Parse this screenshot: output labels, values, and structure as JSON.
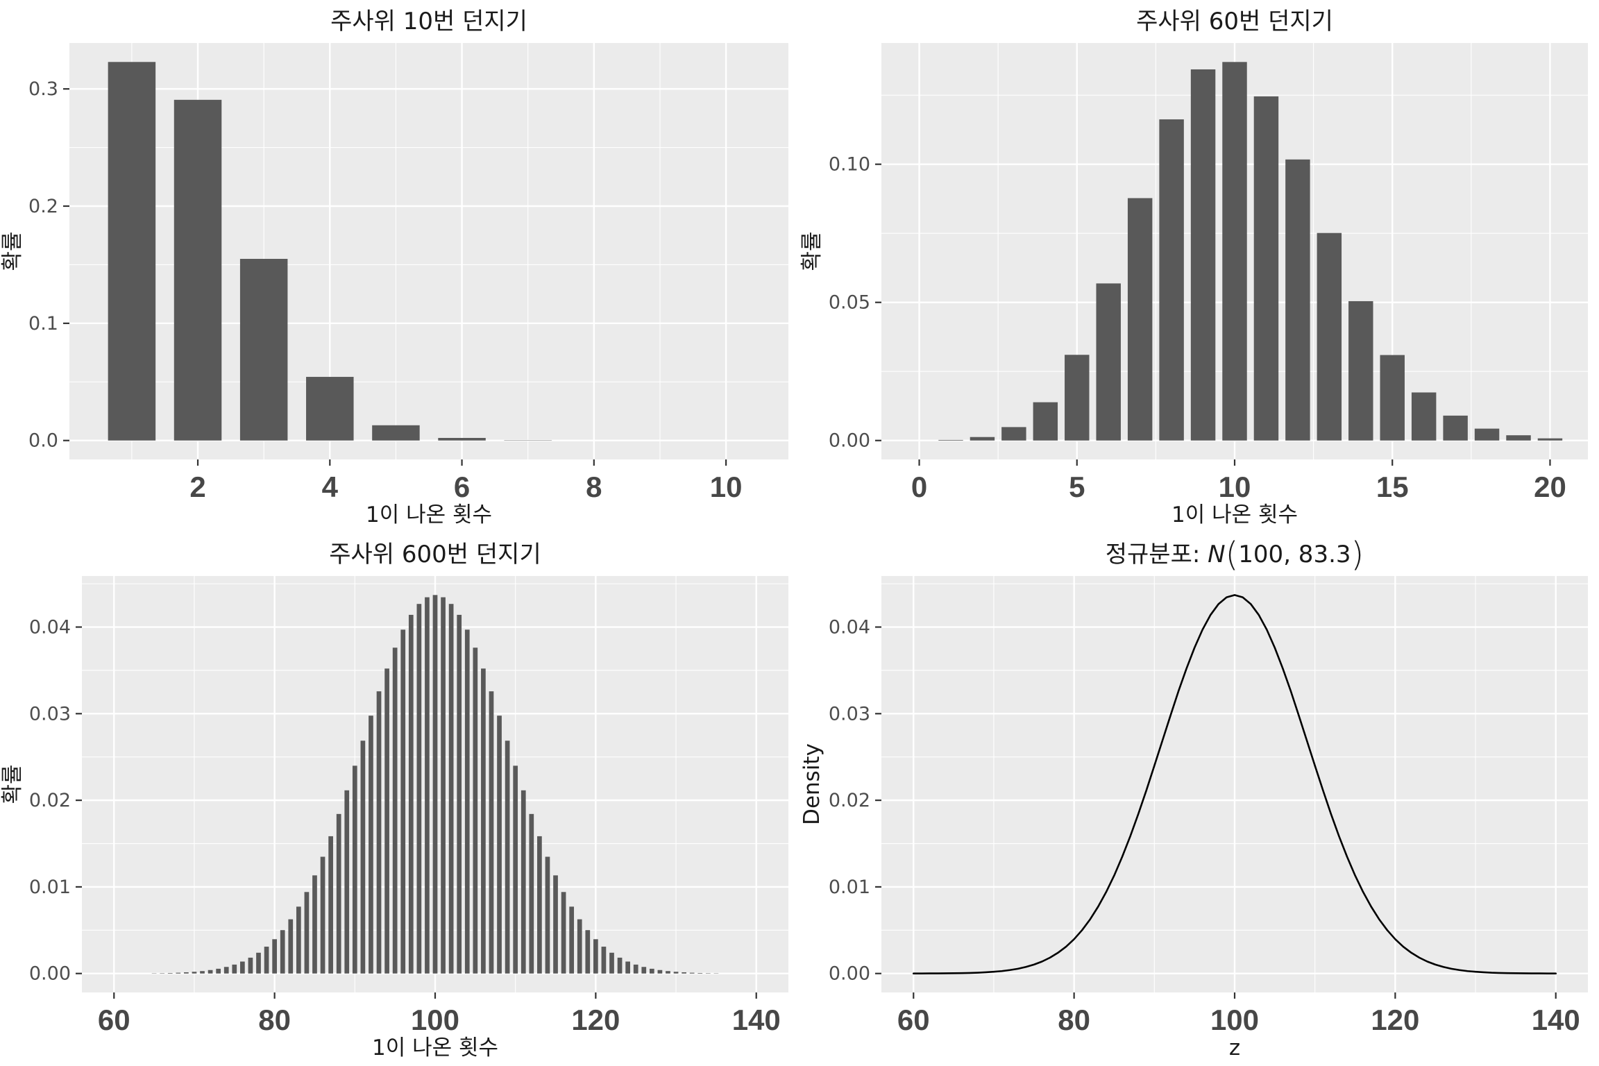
{
  "theme": {
    "background": "#FFFFFF",
    "panel_bg": "#EBEBEB",
    "grid_color": "#FFFFFF",
    "bar_color": "#595959",
    "line_color": "#000000",
    "axis_tick_color": "#333333",
    "x_tick_label_color": "#474747",
    "y_tick_label_color": "#4D4D4D",
    "text_color": "#1A1A1A"
  },
  "chart_data": [
    {
      "type": "bar",
      "title": "주사위 10번 던지기",
      "xlabel": "1이 나온 횟수",
      "ylabel": "확률",
      "xlim": [
        0.055,
        10.945
      ],
      "ylim": [
        -0.01615,
        0.33916
      ],
      "xticks": {
        "values": [
          2,
          4,
          6,
          8,
          10
        ],
        "labels": [
          "2",
          "4",
          "6",
          "8",
          "10"
        ]
      },
      "yticks": {
        "values": [
          0,
          0.1,
          0.2,
          0.3
        ],
        "labels": [
          "0.0",
          "0.1",
          "0.2",
          "0.3"
        ]
      },
      "xminor": [
        1,
        3,
        5,
        7,
        9
      ],
      "yminor": [
        0.05,
        0.15,
        0.25
      ],
      "bar_width": 0.72,
      "x": [
        1,
        2,
        3,
        4,
        5,
        6,
        7,
        8,
        9,
        10
      ],
      "y": [
        0.323,
        0.2907,
        0.155,
        0.0543,
        0.013,
        0.0022,
        0.00025,
        2e-05,
        0,
        0
      ]
    },
    {
      "type": "bar",
      "title": "주사위 60번 던지기",
      "xlabel": "1이 나온 횟수",
      "ylabel": "확률",
      "xlim": [
        -1.2,
        21.2
      ],
      "ylim": [
        -0.00685,
        0.14388
      ],
      "xticks": {
        "values": [
          0,
          5,
          10,
          15,
          20
        ],
        "labels": [
          "0",
          "5",
          "10",
          "15",
          "20"
        ]
      },
      "yticks": {
        "values": [
          0,
          0.05,
          0.1
        ],
        "labels": [
          "0.00",
          "0.05",
          "0.10"
        ]
      },
      "xminor": [
        2.5,
        7.5,
        12.5,
        17.5
      ],
      "yminor": [
        0.025,
        0.075,
        0.125
      ],
      "bar_width": 0.78,
      "x": [
        0,
        1,
        2,
        3,
        4,
        5,
        6,
        7,
        8,
        9,
        10,
        11,
        12,
        13,
        14,
        15,
        16,
        17,
        18,
        19,
        20
      ],
      "y": [
        2e-05,
        0.00021,
        0.00126,
        0.00486,
        0.01385,
        0.03102,
        0.05686,
        0.08774,
        0.11625,
        0.13434,
        0.13702,
        0.12457,
        0.10173,
        0.07512,
        0.05044,
        0.03094,
        0.0174,
        0.00901,
        0.0043,
        0.0019,
        0.00078
      ]
    },
    {
      "type": "bar",
      "title": "주사위 600번 던지기",
      "xlabel": "1이 나온 횟수",
      "ylabel": "확률",
      "xlim": [
        56,
        144
      ],
      "ylim": [
        -0.002185,
        0.045891
      ],
      "xticks": {
        "values": [
          60,
          80,
          100,
          120,
          140
        ],
        "labels": [
          "60",
          "80",
          "100",
          "120",
          "140"
        ]
      },
      "yticks": {
        "values": [
          0,
          0.01,
          0.02,
          0.03,
          0.04
        ],
        "labels": [
          "0.00",
          "0.01",
          "0.02",
          "0.03",
          "0.04"
        ]
      },
      "xminor": [
        70,
        90,
        110,
        130
      ],
      "yminor": [
        0.005,
        0.015,
        0.025,
        0.035,
        0.045
      ],
      "bar_width": 0.58,
      "x": [
        65,
        66,
        67,
        68,
        69,
        70,
        71,
        72,
        73,
        74,
        75,
        76,
        77,
        78,
        79,
        80,
        81,
        82,
        83,
        84,
        85,
        86,
        87,
        88,
        89,
        90,
        91,
        92,
        93,
        94,
        95,
        96,
        97,
        98,
        99,
        100,
        101,
        102,
        103,
        104,
        105,
        106,
        107,
        108,
        109,
        110,
        111,
        112,
        113,
        114,
        115,
        116,
        117,
        118,
        119,
        120,
        121,
        122,
        123,
        124,
        125,
        126,
        127,
        128,
        129,
        130,
        131,
        132,
        133,
        134,
        135
      ],
      "y": [
        3e-05,
        4e-05,
        6e-05,
        9e-05,
        0.00014,
        0.0002,
        0.00028,
        0.0004,
        0.00055,
        0.00076,
        0.00103,
        0.00138,
        0.00183,
        0.0024,
        0.0031,
        0.00396,
        0.00501,
        0.00626,
        0.00772,
        0.00941,
        0.01133,
        0.01348,
        0.01585,
        0.01842,
        0.02115,
        0.02399,
        0.02688,
        0.02977,
        0.03258,
        0.03521,
        0.03762,
        0.0397,
        0.04141,
        0.04267,
        0.04344,
        0.0437,
        0.04344,
        0.04267,
        0.04141,
        0.0397,
        0.03762,
        0.03521,
        0.03258,
        0.02977,
        0.02688,
        0.02399,
        0.02115,
        0.01842,
        0.01585,
        0.01348,
        0.01133,
        0.00941,
        0.00772,
        0.00626,
        0.00501,
        0.00396,
        0.0031,
        0.0024,
        0.00183,
        0.00138,
        0.00103,
        0.00076,
        0.00055,
        0.0004,
        0.00028,
        0.0002,
        0.00014,
        9e-05,
        6e-05,
        4e-05,
        3e-05
      ]
    },
    {
      "type": "line",
      "title": "정규분포: N(100, 83.3)",
      "title_segments": [
        {
          "t": "정규분포: "
        },
        {
          "t": "N",
          "italic": true
        },
        {
          "t": "(",
          "paren": true
        },
        {
          "t": "100, 83.3"
        },
        {
          "t": ")",
          "paren": true
        }
      ],
      "xlabel": "z",
      "ylabel": "Density",
      "xlim": [
        56,
        144
      ],
      "ylim": [
        -0.002185,
        0.045891
      ],
      "xticks": {
        "values": [
          60,
          80,
          100,
          120,
          140
        ],
        "labels": [
          "60",
          "80",
          "100",
          "120",
          "140"
        ]
      },
      "yticks": {
        "values": [
          0,
          0.01,
          0.02,
          0.03,
          0.04
        ],
        "labels": [
          "0.00",
          "0.01",
          "0.02",
          "0.03",
          "0.04"
        ]
      },
      "xminor": [
        70,
        90,
        110,
        130
      ],
      "yminor": [
        0.005,
        0.015,
        0.025,
        0.035,
        0.045
      ],
      "x": [
        60,
        61,
        62,
        63,
        64,
        65,
        66,
        67,
        68,
        69,
        70,
        71,
        72,
        73,
        74,
        75,
        76,
        77,
        78,
        79,
        80,
        81,
        82,
        83,
        84,
        85,
        86,
        87,
        88,
        89,
        90,
        91,
        92,
        93,
        94,
        95,
        96,
        97,
        98,
        99,
        100,
        101,
        102,
        103,
        104,
        105,
        106,
        107,
        108,
        109,
        110,
        111,
        112,
        113,
        114,
        115,
        116,
        117,
        118,
        119,
        120,
        121,
        122,
        123,
        124,
        125,
        126,
        127,
        128,
        129,
        130,
        131,
        132,
        133,
        134,
        135,
        136,
        137,
        138,
        139,
        140
      ],
      "y": [
        0,
        0,
        1e-05,
        1e-05,
        2e-05,
        3e-05,
        4e-05,
        6e-05,
        9e-05,
        0.00014,
        0.0002,
        0.00028,
        0.0004,
        0.00055,
        0.00076,
        0.00103,
        0.00138,
        0.00183,
        0.0024,
        0.0031,
        0.00396,
        0.00501,
        0.00626,
        0.00772,
        0.00941,
        0.01133,
        0.01348,
        0.01585,
        0.01842,
        0.02115,
        0.02399,
        0.02688,
        0.02977,
        0.03258,
        0.03521,
        0.03762,
        0.0397,
        0.04141,
        0.04267,
        0.04344,
        0.0437,
        0.04344,
        0.04267,
        0.04141,
        0.0397,
        0.03762,
        0.03521,
        0.03258,
        0.02977,
        0.02688,
        0.02399,
        0.02115,
        0.01842,
        0.01585,
        0.01348,
        0.01133,
        0.00941,
        0.00772,
        0.00626,
        0.00501,
        0.00396,
        0.0031,
        0.0024,
        0.00183,
        0.00138,
        0.00103,
        0.00076,
        0.00055,
        0.0004,
        0.00028,
        0.0002,
        0.00014,
        9e-05,
        6e-05,
        4e-05,
        3e-05,
        2e-05,
        1e-05,
        1e-05,
        0,
        0
      ]
    }
  ]
}
